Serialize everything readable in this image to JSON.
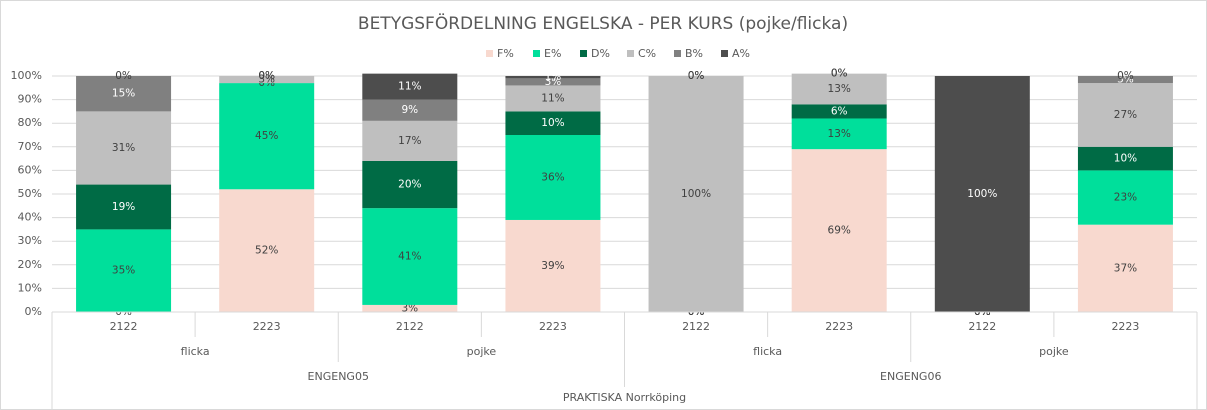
{
  "chart_data": {
    "type": "stacked_bar",
    "title": "BETYGSFÖRDELNING ENGELSKA - PER KURS (pojke/flicka)",
    "categories": [
      "2122",
      "2223",
      "2122",
      "2223",
      "2122",
      "2223",
      "2122",
      "2223"
    ],
    "x_levels": [
      [
        "flicka",
        "pojke",
        "flicka",
        "pojke"
      ],
      [
        "ENGENG05",
        "ENGENG06"
      ],
      [
        "PRAKTISKA Norrköping"
      ]
    ],
    "series": [
      {
        "name": "F%",
        "color": "#f8d9cf",
        "values": [
          0,
          52,
          3,
          39,
          0,
          69,
          0,
          37
        ],
        "value_labels": [
          "0%",
          "52%",
          "3%",
          "39%",
          "0%",
          "69%",
          "0%",
          "37%"
        ]
      },
      {
        "name": "E%",
        "color": "#00df9b",
        "values": [
          35,
          45,
          41,
          36,
          0,
          13,
          0,
          23
        ],
        "value_labels": [
          "35%",
          "45%",
          "41%",
          "36%",
          "0%",
          "13%",
          "0%",
          "23%"
        ]
      },
      {
        "name": "D%",
        "color": "#006b45",
        "values": [
          19,
          0,
          20,
          10,
          0,
          6,
          0,
          10
        ],
        "value_labels": [
          "19%",
          "0%",
          "20%",
          "10%",
          "0%",
          "6%",
          "0%",
          "10%"
        ]
      },
      {
        "name": "C%",
        "color": "#bfbfbf",
        "values": [
          31,
          3,
          17,
          11,
          100,
          13,
          0,
          27
        ],
        "value_labels": [
          "31%",
          "3%",
          "17%",
          "11%",
          "100%",
          "13%",
          "0%",
          "27%"
        ]
      },
      {
        "name": "B%",
        "color": "#808080",
        "values": [
          15,
          0,
          9,
          3,
          0,
          0,
          0,
          3
        ],
        "value_labels": [
          "15%",
          "0%",
          "9%",
          "3%",
          "0%",
          "0%",
          "0%",
          "3%"
        ]
      },
      {
        "name": "A%",
        "color": "#4d4d4d",
        "values": [
          0,
          0,
          11,
          1,
          0,
          0,
          100,
          0
        ],
        "value_labels": [
          "0%",
          "0%",
          "11%",
          "1%",
          "0%",
          "0%",
          "100%",
          "0%"
        ]
      }
    ],
    "ylim": [
      0,
      100
    ],
    "yticks": [
      {
        "value": 0,
        "label": "0%"
      },
      {
        "value": 10,
        "label": "10%"
      },
      {
        "value": 20,
        "label": "20%"
      },
      {
        "value": 30,
        "label": "30%"
      },
      {
        "value": 40,
        "label": "40%"
      },
      {
        "value": 50,
        "label": "50%"
      },
      {
        "value": 60,
        "label": "60%"
      },
      {
        "value": 70,
        "label": "70%"
      },
      {
        "value": 80,
        "label": "80%"
      },
      {
        "value": 90,
        "label": "90%"
      },
      {
        "value": 100,
        "label": "100%"
      }
    ],
    "grid": true,
    "legend": "top"
  }
}
